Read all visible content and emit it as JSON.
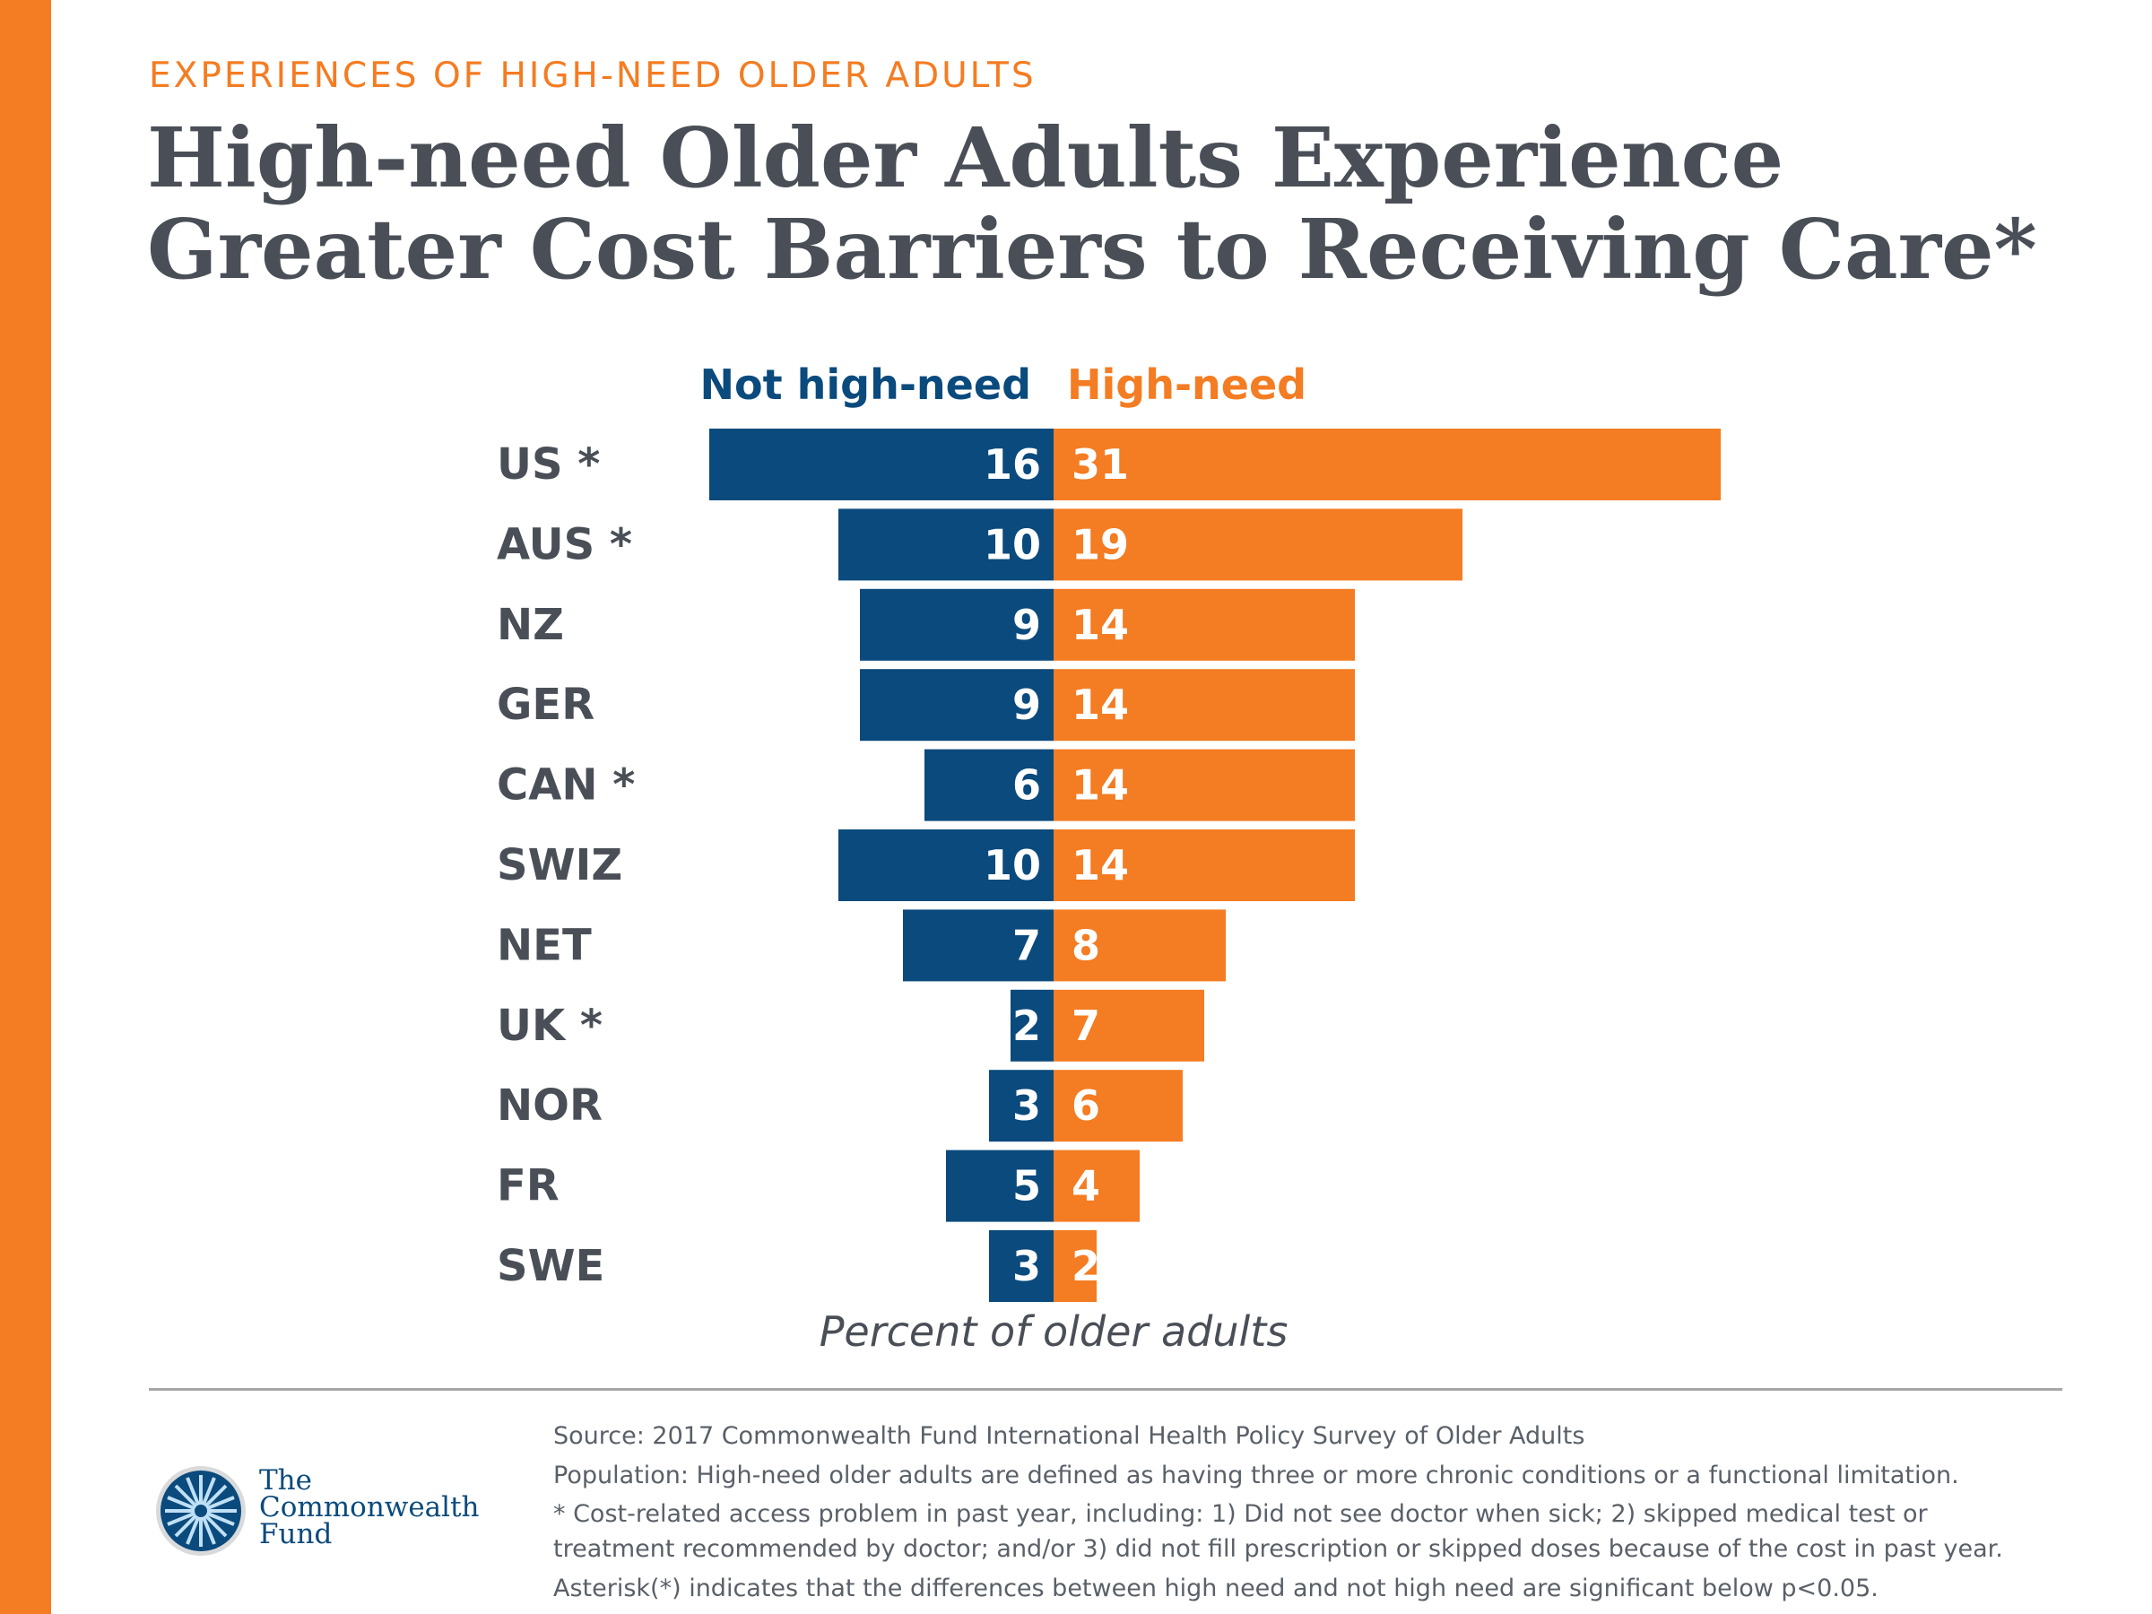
{
  "header": {
    "kicker": "EXPERIENCES OF HIGH-NEED OLDER ADULTS",
    "title": "High-need Older Adults Experience Greater Cost Barriers to Receiving Care*"
  },
  "chart_data": {
    "type": "bar",
    "orientation": "horizontal-diverging",
    "categories": [
      "US *",
      "AUS *",
      "NZ",
      "GER",
      "CAN *",
      "SWIZ",
      "NET",
      "UK *",
      "NOR",
      "FR",
      "SWE"
    ],
    "series": [
      {
        "name": "Not high-need",
        "color": "#0a4a7d",
        "values": [
          16,
          10,
          9,
          9,
          6,
          10,
          7,
          2,
          3,
          5,
          3
        ]
      },
      {
        "name": "High-need",
        "color": "#f47c22",
        "values": [
          31,
          19,
          14,
          14,
          14,
          14,
          8,
          7,
          6,
          4,
          2
        ]
      }
    ],
    "xlabel": "Percent of older adults",
    "legend": "top",
    "grid": false
  },
  "footer": {
    "notes": [
      "Source: 2017 Commonwealth Fund International Health Policy Survey of Older Adults",
      "Population: High-need older adults are defined as having three or more chronic conditions or a functional limitation.",
      "* Cost-related access problem in past year, including: 1) Did not see doctor when sick; 2) skipped medical test or",
      "treatment recommended by doctor; and/or 3) did not fill prescription or skipped doses because of the cost in past year.",
      "Asterisk(*) indicates that the differences between high need and not high need are significant below p<0.05."
    ],
    "logo_text": [
      "The",
      "Commonwealth",
      "Fund"
    ]
  }
}
